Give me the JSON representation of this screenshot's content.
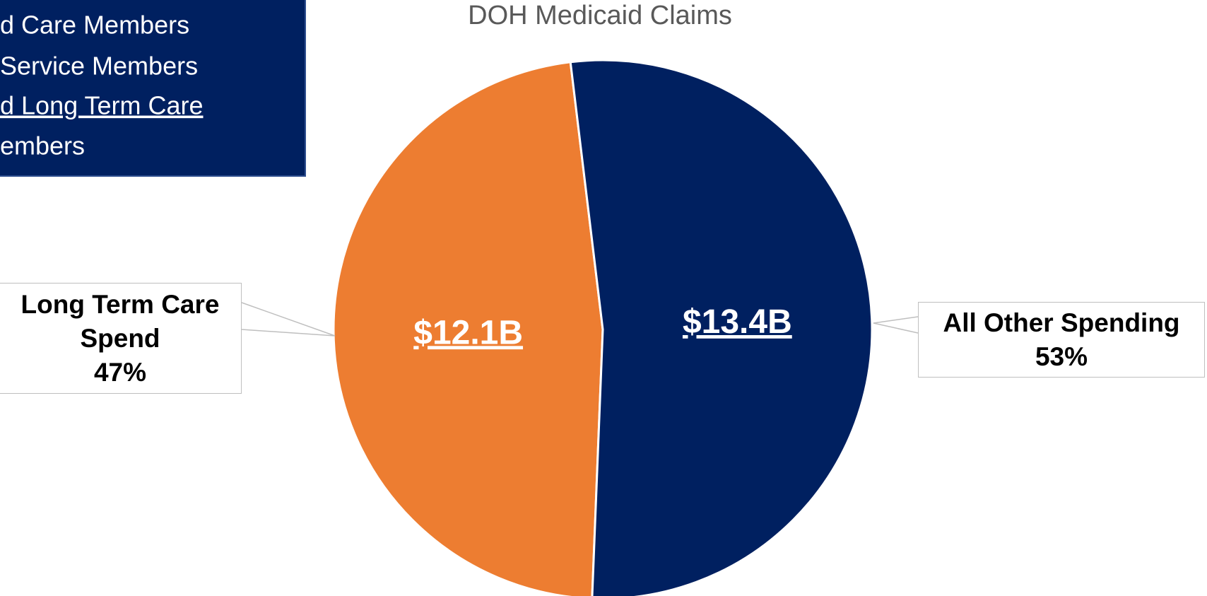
{
  "title": "DOH Medicaid Claims",
  "text_box": {
    "lines": [
      "d Care Members",
      "Service Members",
      "d Long Term Care",
      "embers"
    ]
  },
  "chart_data": {
    "type": "pie",
    "categories": [
      "Long Term Care Spend",
      "All Other Spending"
    ],
    "values": [
      12100000000,
      13400000000
    ],
    "value_labels": [
      "$12.1B",
      "$13.4B"
    ],
    "percentages": [
      47,
      53
    ],
    "percentage_labels": [
      "47%",
      "53%"
    ],
    "colors": [
      "#ed7d31",
      "#002060"
    ]
  }
}
